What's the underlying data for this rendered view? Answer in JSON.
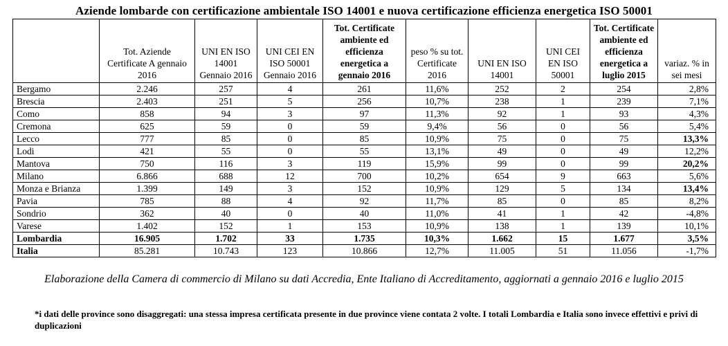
{
  "title": "Aziende lombarde con certificazione ambientale ISO 14001 e nuova certificazione efficienza energetica ISO 50001",
  "headers": [
    "",
    "Tot. Aziende Certificate A gennaio 2016",
    "UNI EN ISO 14001 Gennaio 2016",
    "UNI CEI EN ISO 50001 Gennaio 2016",
    "Tot. Certificate ambiente ed efficienza energetica a gennaio 2016",
    "peso % su tot. Certificate 2016",
    "UNI EN ISO 14001",
    "UNI CEI EN ISO 50001",
    "Tot. Certificate ambiente ed efficienza energetica a luglio 2015",
    "variaz. % in sei mesi"
  ],
  "rows": [
    {
      "name": "Bergamo",
      "c": [
        "2.246",
        "257",
        "4",
        "261",
        "11,6%",
        "252",
        "2",
        "254",
        "2,8%"
      ]
    },
    {
      "name": "Brescia",
      "c": [
        "2.403",
        "251",
        "5",
        "256",
        "10,7%",
        "238",
        "1",
        "239",
        "7,1%"
      ]
    },
    {
      "name": "Como",
      "c": [
        "858",
        "94",
        "3",
        "97",
        "11,3%",
        "92",
        "1",
        "93",
        "4,3%"
      ]
    },
    {
      "name": "Cremona",
      "c": [
        "625",
        "59",
        "0",
        "59",
        "9,4%",
        "56",
        "0",
        "56",
        "5,4%"
      ]
    },
    {
      "name": "Lecco",
      "c": [
        "777",
        "85",
        "0",
        "85",
        "10,9%",
        "75",
        "0",
        "75",
        "13,3%"
      ]
    },
    {
      "name": "Lodi",
      "c": [
        "421",
        "55",
        "0",
        "55",
        "13,1%",
        "49",
        "0",
        "49",
        "12,2%"
      ]
    },
    {
      "name": "Mantova",
      "c": [
        "750",
        "116",
        "3",
        "119",
        "15,9%",
        "99",
        "0",
        "99",
        "20,2%"
      ]
    },
    {
      "name": "Milano",
      "c": [
        "6.866",
        "688",
        "12",
        "700",
        "10,2%",
        "654",
        "9",
        "663",
        "5,6%"
      ]
    },
    {
      "name": "Monza e Brianza",
      "c": [
        "1.399",
        "149",
        "3",
        "152",
        "10,9%",
        "129",
        "5",
        "134",
        "13,4%"
      ]
    },
    {
      "name": "Pavia",
      "c": [
        "785",
        "88",
        "4",
        "92",
        "11,7%",
        "85",
        "0",
        "85",
        "8,2%"
      ]
    },
    {
      "name": "Sondrio",
      "c": [
        "362",
        "40",
        "0",
        "40",
        "11,0%",
        "41",
        "1",
        "42",
        "-4,8%"
      ]
    },
    {
      "name": "Varese",
      "c": [
        "1.402",
        "152",
        "1",
        "153",
        "10,9%",
        "138",
        "1",
        "139",
        "10,1%"
      ]
    },
    {
      "name": "Lombardia",
      "c": [
        "16.905",
        "1.702",
        "33",
        "1.735",
        "10,3%",
        "1.662",
        "15",
        "1.677",
        "3,5%"
      ]
    },
    {
      "name": "Italia",
      "c": [
        "85.281",
        "10.743",
        "123",
        "10.866",
        "12,7%",
        "11.005",
        "51",
        "11.056",
        "-1,7%"
      ]
    }
  ],
  "source": "Elaborazione della Camera di commercio di Milano su dati Accredia, Ente Italiano di Accreditamento, aggiornati a gennaio 2016 e luglio 2015",
  "note": "*i dati delle province sono disaggregati: una stessa impresa certificata presente in due province viene contata 2 volte. I totali Lombardia e Italia sono invece effettivi e privi di duplicazioni"
}
